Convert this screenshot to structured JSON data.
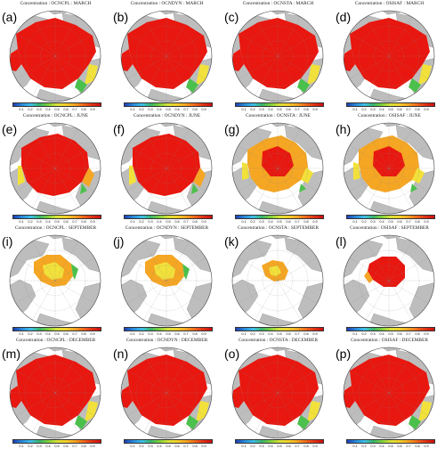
{
  "panels": [
    {
      "label": "(a)",
      "title": "Concentration : OCNCPL : MARCH",
      "ice": "full",
      "season": "winter"
    },
    {
      "label": "(b)",
      "title": "Concentration : OCNDYN : MARCH",
      "ice": "full",
      "season": "winter"
    },
    {
      "label": "(c)",
      "title": "Concentration : OCNSTA : MARCH",
      "ice": "full",
      "season": "winter"
    },
    {
      "label": "(d)",
      "title": "Concentration : OSISAF : MARCH",
      "ice": "full",
      "season": "winter"
    },
    {
      "label": "(e)",
      "title": "Concentration : OCNCPL : JUNE",
      "ice": "june",
      "season": "summer"
    },
    {
      "label": "(f)",
      "title": "Concentration : OCNDYN : JUNE",
      "ice": "june",
      "season": "summer"
    },
    {
      "label": "(g)",
      "title": "Concentration : OCNSTA : JUNE",
      "ice": "june-low",
      "season": "summer"
    },
    {
      "label": "(h)",
      "title": "Concentration : OSISAF : JUNE",
      "ice": "june-low",
      "season": "summer"
    },
    {
      "label": "(i)",
      "title": "Concentration : OCNCPL : SEPTEMBER",
      "ice": "sept",
      "season": "sept"
    },
    {
      "label": "(j)",
      "title": "Concentration : OCNDYN : SEPTEMBER",
      "ice": "sept",
      "season": "sept"
    },
    {
      "label": "(k)",
      "title": "Concentration : OCNSTA : SEPTEMBER",
      "ice": "sept-small",
      "season": "sept"
    },
    {
      "label": "(l)",
      "title": "Concentration : OSISAF : SEPTEMBER",
      "ice": "sept-red",
      "season": "sept"
    },
    {
      "label": "(m)",
      "title": "Concentration : OCNCPL : DECEMBER",
      "ice": "full",
      "season": "winter"
    },
    {
      "label": "(n)",
      "title": "Concentration : OCNDYN : DECEMBER",
      "ice": "full",
      "season": "winter"
    },
    {
      "label": "(o)",
      "title": "Concentration : OCNSTA : DECEMBER",
      "ice": "full",
      "season": "winter"
    },
    {
      "label": "(p)",
      "title": "Concentration : OSISAF : DECEMBER",
      "ice": "full",
      "season": "winter"
    }
  ],
  "colorbar_ticks": [
    "0.1",
    "0.2",
    "0.3",
    "0.4",
    "0.5",
    "0.6",
    "0.7",
    "0.8",
    "0.9"
  ],
  "colors": {
    "land": "#bdbdbd",
    "ocean": "#ffffff",
    "ice_high": "#e8170f",
    "ice_mid": "#f5a623",
    "ice_yellow": "#f2e13a",
    "ice_green": "#4cc04c",
    "ice_blue": "#2a7fd6"
  }
}
